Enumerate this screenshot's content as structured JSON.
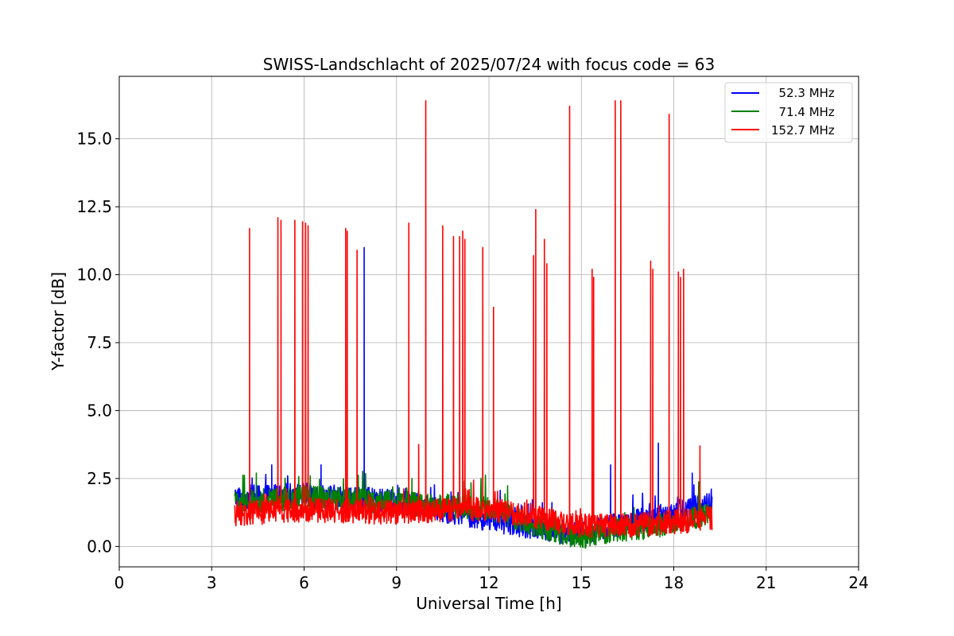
{
  "chart_data": {
    "type": "line",
    "title": "SWISS-Landschlacht of 2025/07/24 with focus code = 63",
    "xlabel": "Universal Time [h]",
    "ylabel": "Y-factor [dB]",
    "xlim": [
      0,
      24
    ],
    "ylim": [
      -0.75,
      17.3
    ],
    "xticks": [
      0,
      3,
      6,
      9,
      12,
      15,
      18,
      21,
      24
    ],
    "xtick_labels": [
      "0",
      "3",
      "6",
      "9",
      "12",
      "15",
      "18",
      "21",
      "24"
    ],
    "yticks": [
      0,
      2.5,
      5,
      7.5,
      10,
      12.5,
      15
    ],
    "ytick_labels": [
      "0.0",
      "2.5",
      "5.0",
      "7.5",
      "10.0",
      "12.5",
      "15.0"
    ],
    "grid": true,
    "legend_position": "top-right",
    "time_range": [
      3.75,
      19.25
    ],
    "series": [
      {
        "name": "  52.3 MHz",
        "color": "#0000ff",
        "baseline": [
          [
            3.75,
            1.8
          ],
          [
            6.0,
            1.9
          ],
          [
            9.0,
            1.65
          ],
          [
            12.0,
            1.0
          ],
          [
            14.0,
            0.6
          ],
          [
            15.0,
            0.45
          ],
          [
            16.0,
            0.75
          ],
          [
            17.5,
            1.1
          ],
          [
            18.5,
            1.4
          ],
          [
            19.25,
            1.6
          ]
        ],
        "peaks": [
          [
            4.95,
            3.0
          ],
          [
            6.55,
            3.0
          ],
          [
            7.95,
            11.0
          ],
          [
            15.95,
            3.0
          ],
          [
            17.5,
            3.8
          ],
          [
            18.6,
            2.7
          ]
        ]
      },
      {
        "name": "  71.4 MHz",
        "color": "#008000",
        "baseline": [
          [
            3.75,
            1.6
          ],
          [
            6.0,
            1.8
          ],
          [
            9.0,
            1.6
          ],
          [
            12.0,
            1.4
          ],
          [
            13.5,
            0.8
          ],
          [
            14.5,
            0.4
          ],
          [
            15.0,
            0.35
          ],
          [
            16.0,
            0.6
          ],
          [
            17.5,
            0.75
          ],
          [
            18.5,
            1.0
          ],
          [
            19.25,
            1.3
          ]
        ],
        "peaks": [
          [
            4.45,
            2.7
          ],
          [
            6.2,
            2.6
          ],
          [
            9.5,
            2.5
          ]
        ]
      },
      {
        "name": "152.7 MHz",
        "color": "#ff0000",
        "baseline": [
          [
            3.75,
            1.2
          ],
          [
            6.0,
            1.35
          ],
          [
            9.0,
            1.25
          ],
          [
            12.0,
            1.4
          ],
          [
            13.5,
            1.1
          ],
          [
            15.0,
            0.75
          ],
          [
            16.0,
            0.75
          ],
          [
            17.5,
            0.85
          ],
          [
            18.5,
            0.95
          ],
          [
            19.25,
            1.05
          ]
        ],
        "peaks": [
          [
            4.23,
            11.7
          ],
          [
            5.15,
            12.1
          ],
          [
            5.25,
            12.0
          ],
          [
            5.7,
            12.0
          ],
          [
            5.95,
            11.95
          ],
          [
            6.05,
            11.9
          ],
          [
            6.13,
            11.8
          ],
          [
            7.35,
            11.7
          ],
          [
            7.4,
            11.6
          ],
          [
            7.72,
            10.9
          ],
          [
            9.4,
            11.9
          ],
          [
            9.72,
            3.75
          ],
          [
            9.95,
            16.4
          ],
          [
            10.5,
            11.8
          ],
          [
            10.85,
            11.4
          ],
          [
            11.05,
            11.4
          ],
          [
            11.15,
            11.6
          ],
          [
            11.22,
            11.3
          ],
          [
            11.8,
            11.0
          ],
          [
            12.15,
            8.8
          ],
          [
            13.45,
            10.7
          ],
          [
            13.52,
            12.4
          ],
          [
            13.8,
            11.3
          ],
          [
            13.88,
            10.4
          ],
          [
            14.62,
            16.2
          ],
          [
            15.35,
            10.2
          ],
          [
            15.4,
            9.9
          ],
          [
            16.1,
            16.4
          ],
          [
            16.28,
            16.4
          ],
          [
            17.25,
            10.5
          ],
          [
            17.32,
            10.2
          ],
          [
            17.85,
            15.9
          ],
          [
            18.15,
            10.1
          ],
          [
            18.22,
            9.9
          ],
          [
            18.32,
            10.2
          ],
          [
            18.85,
            3.7
          ]
        ]
      }
    ]
  }
}
